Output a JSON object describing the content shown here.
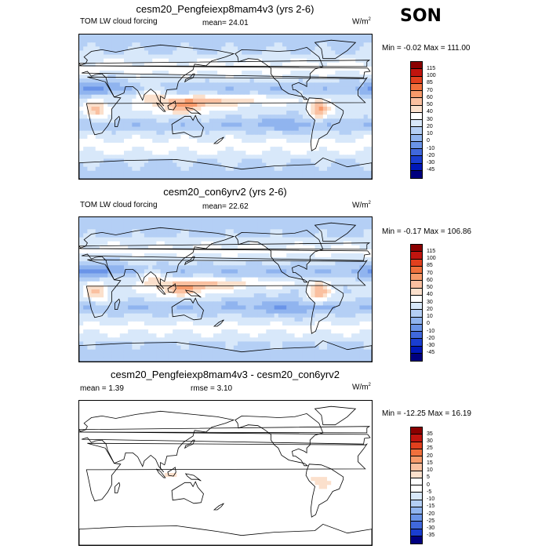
{
  "season": "SON",
  "chart_data": [
    {
      "type": "heatmap",
      "panel": "top",
      "title": "cesm20_Pengfeiexp8mam4v3 (yrs 2-6)",
      "left_label": "TOM LW cloud forcing",
      "center_label": "mean=  24.01",
      "units": "W/m",
      "units_sup": "2",
      "minmax": "Min =  -0.02 Max = 111.00",
      "min": -0.02,
      "max": 111.0,
      "mean": 24.01,
      "levels": [
        "115",
        "100",
        "85",
        "70",
        "60",
        "50",
        "40",
        "30",
        "20",
        "10",
        "0",
        "-10",
        "-20",
        "-30",
        "-45"
      ],
      "colors": [
        "#8b0000",
        "#c0140e",
        "#e1401e",
        "#f0703c",
        "#f79a6a",
        "#fac0a0",
        "#fbe0cc",
        "#ffffff",
        "#d8e8fa",
        "#b4cff5",
        "#90b4ef",
        "#6a94e8",
        "#4068dc",
        "#1a3ed0",
        "#0018b8",
        "#000080"
      ],
      "field": "lw_cloud_forcing"
    },
    {
      "type": "heatmap",
      "panel": "middle",
      "title": "cesm20_con6yrv2 (yrs 2-6)",
      "left_label": "TOM LW cloud forcing",
      "center_label": "mean=  22.62",
      "units": "W/m",
      "units_sup": "2",
      "minmax": "Min =  -0.17 Max = 106.86",
      "min": -0.17,
      "max": 106.86,
      "mean": 22.62,
      "levels": [
        "115",
        "100",
        "85",
        "70",
        "60",
        "50",
        "40",
        "30",
        "20",
        "10",
        "0",
        "-10",
        "-20",
        "-30",
        "-45"
      ],
      "colors": [
        "#8b0000",
        "#c0140e",
        "#e1401e",
        "#f0703c",
        "#f79a6a",
        "#fac0a0",
        "#fbe0cc",
        "#ffffff",
        "#d8e8fa",
        "#b4cff5",
        "#90b4ef",
        "#6a94e8",
        "#4068dc",
        "#1a3ed0",
        "#0018b8",
        "#000080"
      ],
      "field": "lw_cloud_forcing"
    },
    {
      "type": "heatmap",
      "panel": "bottom",
      "title": "cesm20_Pengfeiexp8mam4v3 - cesm20_con6yrv2",
      "left_label": "mean =   1.39",
      "center_label": "rmse =   3.10",
      "units": "W/m",
      "units_sup": "2",
      "minmax": "Min = -12.25 Max =  16.19",
      "min": -12.25,
      "max": 16.19,
      "mean": 1.39,
      "rmse": 3.1,
      "levels": [
        "35",
        "30",
        "25",
        "20",
        "15",
        "10",
        "5",
        "0",
        "-5",
        "-10",
        "-15",
        "-20",
        "-25",
        "-30",
        "-35"
      ],
      "colors": [
        "#8b0000",
        "#c0140e",
        "#e1401e",
        "#f0703c",
        "#f79a6a",
        "#fac0a0",
        "#fbe0cc",
        "#ffffff",
        "#ffffff",
        "#d8e8fa",
        "#b4cff5",
        "#90b4ef",
        "#6a94e8",
        "#4068dc",
        "#1a3ed0",
        "#000080"
      ],
      "field": "difference"
    }
  ]
}
